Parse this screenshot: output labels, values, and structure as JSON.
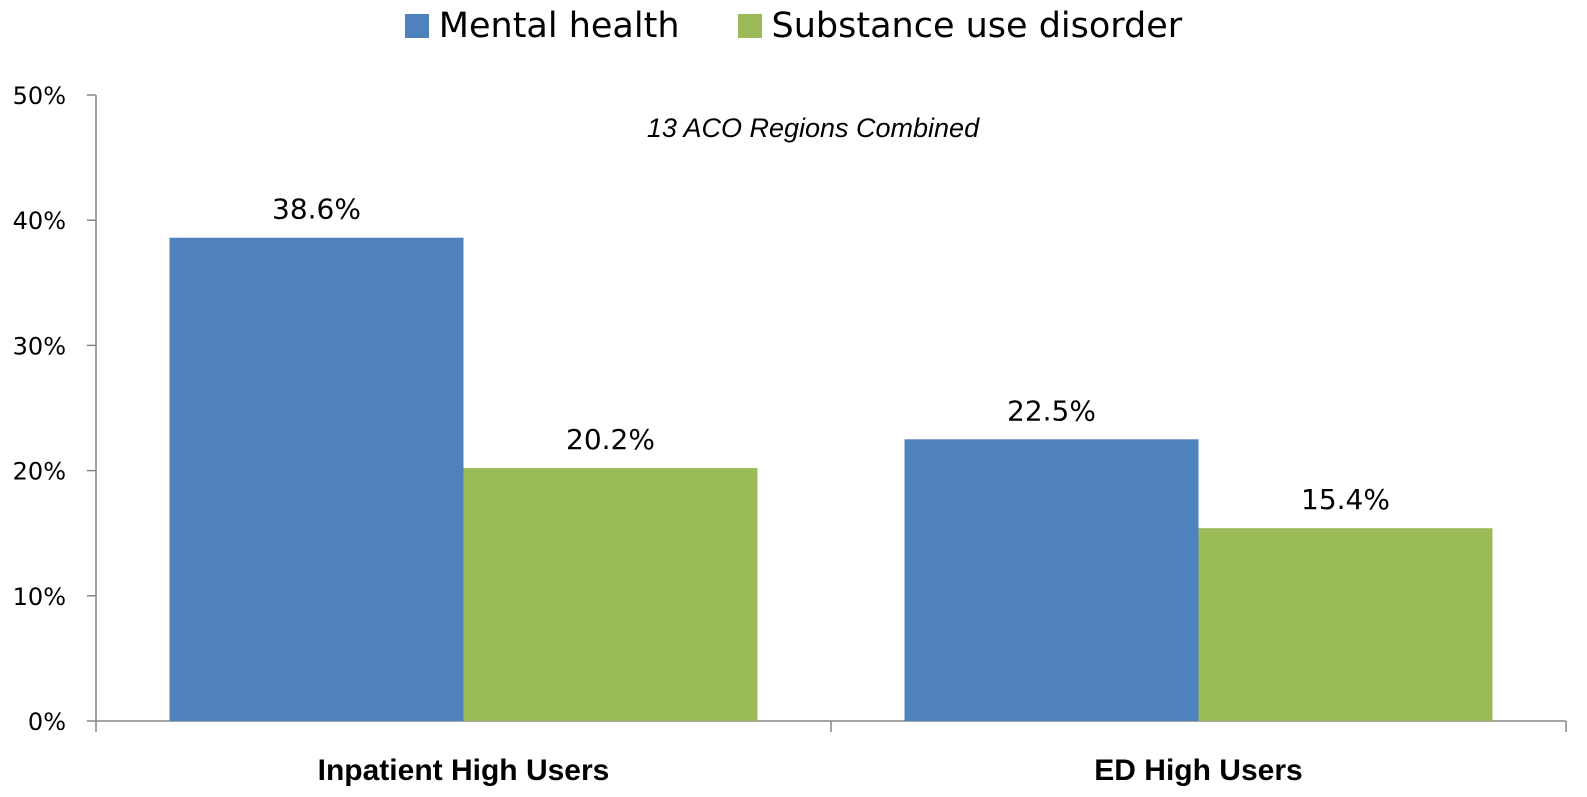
{
  "chart_data": {
    "type": "bar",
    "subtitle": "13 ACO Regions Combined",
    "categories": [
      "Inpatient High Users",
      "ED High Users"
    ],
    "series": [
      {
        "name": "Mental health",
        "values": [
          38.6,
          22.5
        ],
        "labels": [
          "38.6%",
          "22.5%"
        ],
        "color": "#4F81BD"
      },
      {
        "name": "Substance use disorder",
        "values": [
          20.2,
          15.4
        ],
        "labels": [
          "20.2%",
          "15.4%"
        ],
        "color": "#9BBB59"
      }
    ],
    "ylim": [
      0,
      50
    ],
    "yticks": [
      "0%",
      "10%",
      "20%",
      "30%",
      "40%",
      "50%"
    ],
    "xlabel": "",
    "ylabel": "",
    "grid": false,
    "legend_position": "top-center"
  }
}
